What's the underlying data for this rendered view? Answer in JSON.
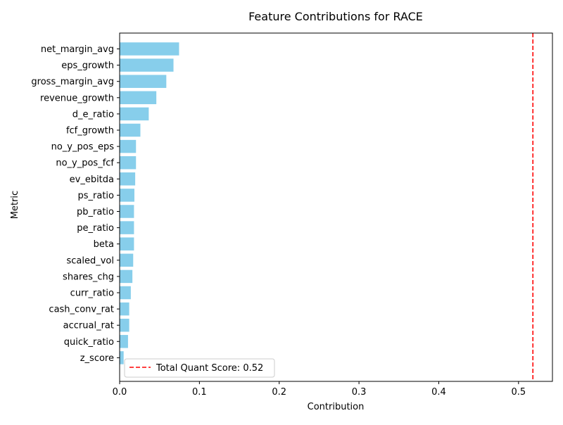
{
  "chart_data": {
    "type": "bar",
    "orientation": "horizontal",
    "title": "Feature Contributions for RACE",
    "xlabel": "Contribution",
    "ylabel": "Metric",
    "xlim": [
      0,
      0.5425
    ],
    "x_ticks": [
      "0.0",
      "0.1",
      "0.2",
      "0.3",
      "0.4",
      "0.5"
    ],
    "categories": [
      "net_margin_avg",
      "eps_growth",
      "gross_margin_avg",
      "revenue_growth",
      "d_e_ratio",
      "fcf_growth",
      "no_y_pos_eps",
      "no_y_pos_fcf",
      "ev_ebitda",
      "ps_ratio",
      "pb_ratio",
      "pe_ratio",
      "beta",
      "scaled_vol",
      "shares_chg",
      "curr_ratio",
      "cash_conv_rat",
      "accrual_rat",
      "quick_ratio",
      "z_score"
    ],
    "values": [
      0.0745,
      0.0675,
      0.0585,
      0.046,
      0.0365,
      0.026,
      0.0205,
      0.0205,
      0.0195,
      0.0185,
      0.018,
      0.018,
      0.018,
      0.017,
      0.016,
      0.014,
      0.012,
      0.012,
      0.0105,
      0.005
    ],
    "bar_color": "#87ceeb",
    "reference_line": {
      "value": 0.518,
      "color": "#ff0000",
      "style": "dashed",
      "label": "Total Quant Score: 0.52"
    },
    "legend_position": "lower-left",
    "grid": false
  }
}
